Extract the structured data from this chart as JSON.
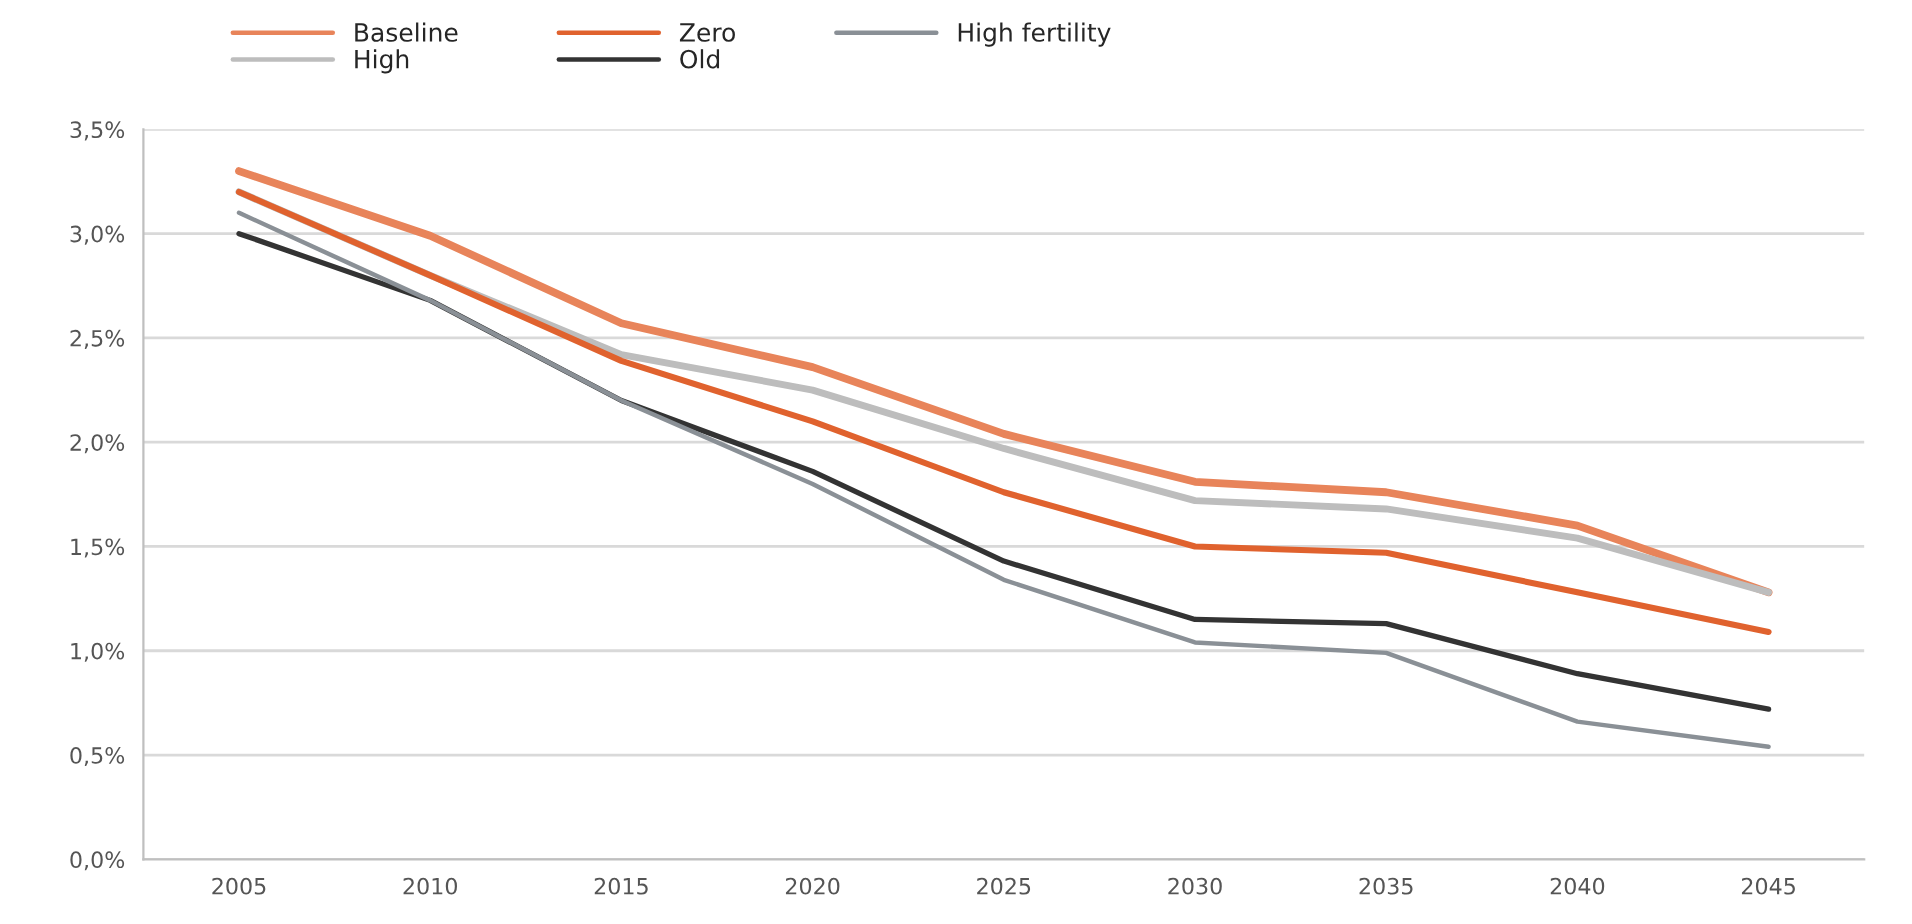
{
  "chart_data": {
    "type": "line",
    "categories": [
      "2005",
      "2010",
      "2015",
      "2020",
      "2025",
      "2030",
      "2035",
      "2040",
      "2045"
    ],
    "series": [
      {
        "name": "Baseline",
        "color": "#e8845a",
        "values": [
          3.3,
          2.99,
          2.57,
          2.36,
          2.04,
          1.81,
          1.76,
          1.6,
          1.28
        ]
      },
      {
        "name": "High",
        "color": "#bdbdbd",
        "values": [
          3.2,
          2.8,
          2.42,
          2.25,
          1.97,
          1.72,
          1.68,
          1.54,
          1.28
        ]
      },
      {
        "name": "Zero",
        "color": "#e0622e",
        "values": [
          3.2,
          2.8,
          2.39,
          2.1,
          1.76,
          1.5,
          1.47,
          1.28,
          1.09
        ]
      },
      {
        "name": "Old",
        "color": "#333333",
        "values": [
          3.0,
          2.68,
          2.2,
          1.86,
          1.43,
          1.15,
          1.13,
          0.89,
          0.72
        ]
      },
      {
        "name": "High fertility",
        "color": "#8a9096",
        "values": [
          3.1,
          2.68,
          2.2,
          1.8,
          1.34,
          1.04,
          0.99,
          0.66,
          0.54
        ]
      }
    ],
    "ylim": [
      0,
      3.5
    ],
    "yticks": [
      {
        "value": 0,
        "label": "0,0%"
      },
      {
        "value": 0.5,
        "label": "0,5%"
      },
      {
        "value": 1,
        "label": "1,0%"
      },
      {
        "value": 1.5,
        "label": "1,5%"
      },
      {
        "value": 2,
        "label": "2,0%"
      },
      {
        "value": 2.5,
        "label": "2,5%"
      },
      {
        "value": 3,
        "label": "3,0%"
      },
      {
        "value": 3.5,
        "label": "3,5%"
      }
    ],
    "grid": "y",
    "legend": "top left",
    "marker": "none",
    "line_style": "solid"
  }
}
